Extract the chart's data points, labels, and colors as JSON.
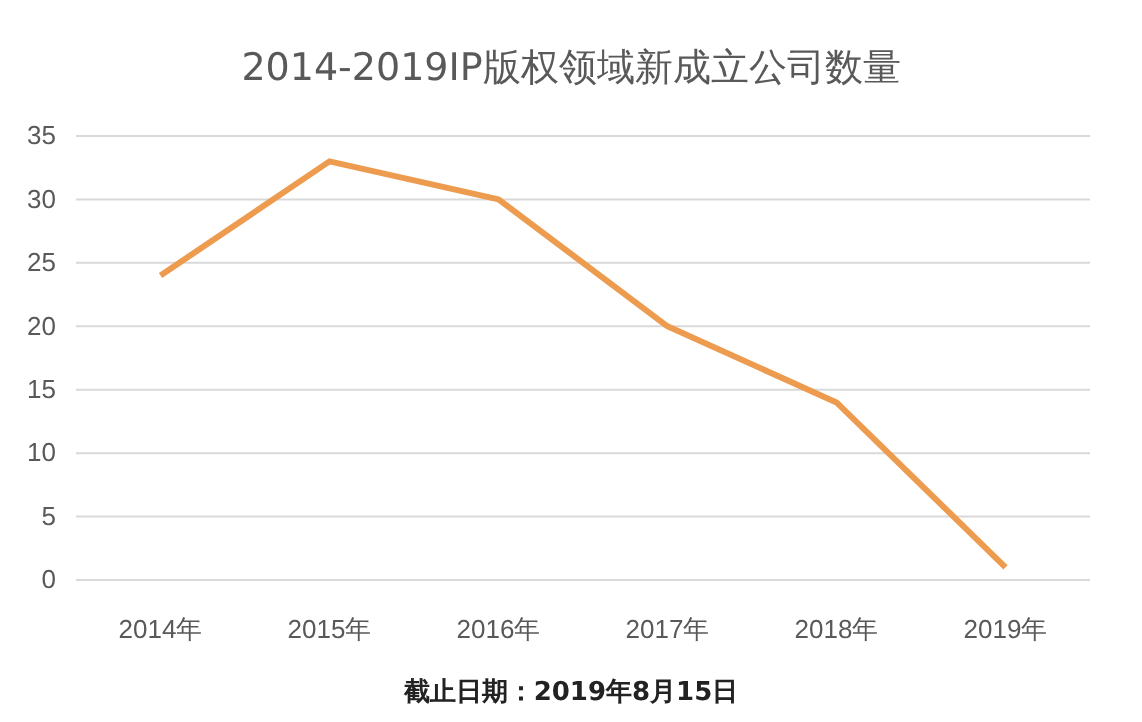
{
  "chart_data": {
    "type": "line",
    "title": "2014-2019IP版权领域新成立公司数量",
    "categories": [
      "2014年",
      "2015年",
      "2016年",
      "2017年",
      "2018年",
      "2019年"
    ],
    "series": [
      {
        "color": "#ed9b4f",
        "values": [
          24,
          33,
          30,
          20,
          14,
          1
        ]
      }
    ],
    "ylim": [
      0,
      35
    ],
    "yticks": [
      0,
      5,
      10,
      15,
      20,
      25,
      30,
      35
    ],
    "grid": "y",
    "marker": "none",
    "line_style": "solid",
    "annotations": [
      "截止日期：2019年8月15日"
    ]
  }
}
